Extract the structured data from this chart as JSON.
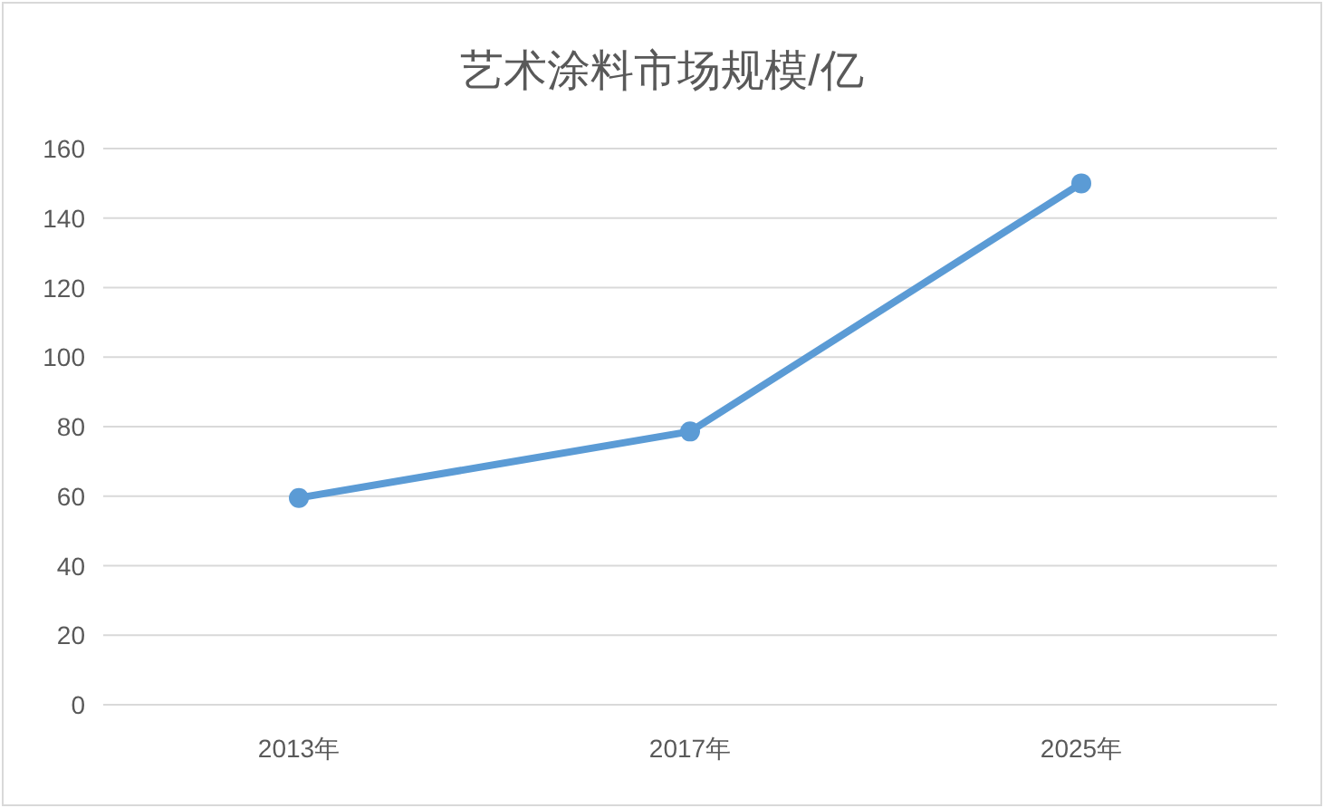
{
  "chart_data": {
    "type": "line",
    "title": "艺术涂料市场规模/亿",
    "categories": [
      "2013年",
      "2017年",
      "2025年"
    ],
    "series": [
      {
        "color": "#5b9bd5",
        "values": [
          59.5,
          78.6,
          150
        ]
      }
    ],
    "ylim": [
      0,
      160
    ],
    "yticks": [
      0,
      20,
      40,
      60,
      80,
      100,
      120,
      140,
      160
    ],
    "grid": "y",
    "marker": "circle",
    "line_style": "solid"
  }
}
